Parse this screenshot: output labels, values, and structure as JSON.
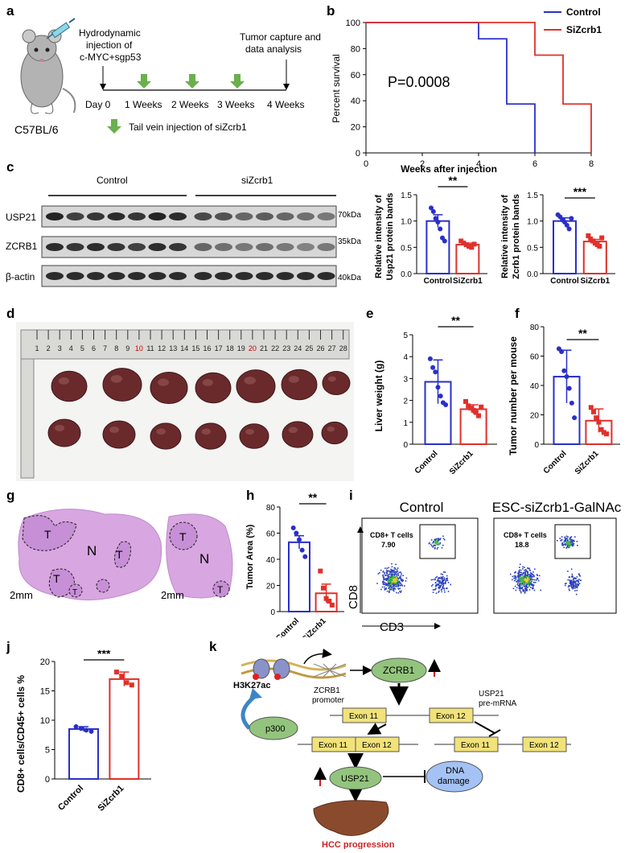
{
  "panel_labels": [
    "a",
    "b",
    "c",
    "d",
    "e",
    "f",
    "g",
    "h",
    "i",
    "j",
    "k"
  ],
  "colors": {
    "control": "#2a2fc9",
    "siZcrb1": "#e0302a",
    "arrow_green": "#6ab04c",
    "violet": "#d8a6e0"
  },
  "a": {
    "mouse_label": "C57BL/6",
    "injection_text": [
      "Hydrodynamic",
      "injection of",
      "c-MYC+sgp53"
    ],
    "capture_text": [
      "Tumor capture and",
      "data analysis"
    ],
    "timeline": [
      "Day 0",
      "1 Weeks",
      "2 Weeks",
      "3 Weeks",
      "4 Weeks"
    ],
    "legend": "Tail vein injection of  siZcrb1"
  },
  "b": {
    "chart_data": {
      "type": "line",
      "xlabel": "Weeks after injection",
      "ylabel": "Percent survival",
      "xlim": [
        0,
        8
      ],
      "ylim": [
        0,
        100
      ],
      "xticks": [
        "0",
        "2",
        "4",
        "6",
        "8"
      ],
      "yticks": [
        "0",
        "20",
        "40",
        "60",
        "80",
        "100"
      ],
      "annotation": "P=0.0008",
      "legend_position": "top-right",
      "series": [
        {
          "name": "Control",
          "steps": [
            [
              0,
              100
            ],
            [
              4,
              100
            ],
            [
              4,
              87.5
            ],
            [
              5,
              87.5
            ],
            [
              5,
              37.5
            ],
            [
              6,
              37.5
            ],
            [
              6,
              0
            ]
          ]
        },
        {
          "name": "SiZcrb1",
          "steps": [
            [
              0,
              100
            ],
            [
              6,
              100
            ],
            [
              6,
              75
            ],
            [
              7,
              75
            ],
            [
              7,
              37.5
            ],
            [
              8,
              37.5
            ],
            [
              8,
              0
            ]
          ]
        }
      ]
    }
  },
  "c": {
    "groups": [
      "Control",
      "siZcrb1"
    ],
    "rows": [
      "USP21",
      "ZCRB1",
      "β-actin"
    ],
    "kda": [
      "70kDa",
      "35kDa",
      "40kDa"
    ],
    "usp21_chart": {
      "chart_data": {
        "type": "bar",
        "ylabel": [
          "Relative  intensity of",
          "Usp21 protein bands"
        ],
        "categories": [
          "Control",
          "SiZcrb1"
        ],
        "values": [
          1.0,
          0.55
        ],
        "errors": [
          0.12,
          0.03
        ],
        "ylim": [
          0,
          1.5
        ],
        "yticks": [
          "0.0",
          "0.5",
          "1.0",
          "1.5"
        ],
        "significance": "**",
        "points": [
          [
            1.25,
            1.18,
            1.05,
            0.98,
            0.85,
            0.68,
            0.62
          ],
          [
            0.62,
            0.58,
            0.55,
            0.52,
            0.5,
            0.56
          ]
        ]
      }
    },
    "zcrb1_chart": {
      "chart_data": {
        "type": "bar",
        "ylabel": [
          "Relative intensity of",
          "Zcrb1 protein bands"
        ],
        "categories": [
          "Control",
          "SiZcrb1"
        ],
        "values": [
          1.0,
          0.61
        ],
        "errors": [
          0.06,
          0.04
        ],
        "ylim": [
          0,
          1.5
        ],
        "yticks": [
          "0.0",
          "0.5",
          "1.0",
          "1.5"
        ],
        "significance": "***",
        "points": [
          [
            1.12,
            1.08,
            1.02,
            0.98,
            0.92,
            0.85,
            1.05
          ],
          [
            0.72,
            0.66,
            0.62,
            0.58,
            0.55,
            0.52,
            0.68
          ]
        ]
      }
    }
  },
  "d": {
    "ruler_numbers": [
      "1",
      "2",
      "3",
      "4",
      "5",
      "6",
      "7",
      "8",
      "9",
      "10",
      "11",
      "12",
      "13",
      "14",
      "15",
      "16",
      "17",
      "18",
      "19",
      "20",
      "21",
      "22",
      "23",
      "24",
      "25",
      "26",
      "27",
      "28"
    ]
  },
  "e": {
    "chart_data": {
      "type": "bar",
      "ylabel": "Liver weight (g)",
      "categories": [
        "Control",
        "SiZcrb1"
      ],
      "values": [
        2.85,
        1.6
      ],
      "errors": [
        1.0,
        0.2
      ],
      "ylim": [
        0,
        5
      ],
      "yticks": [
        "0",
        "1",
        "2",
        "3",
        "4",
        "5"
      ],
      "significance": "**",
      "points": [
        [
          3.9,
          3.5,
          3.3,
          2.6,
          2.2,
          1.9,
          1.8
        ],
        [
          1.95,
          1.75,
          1.65,
          1.55,
          1.45,
          1.3,
          1.7
        ]
      ]
    }
  },
  "f": {
    "chart_data": {
      "type": "bar",
      "ylabel": "Tumor number per mouse",
      "categories": [
        "Control",
        "SiZcrb1"
      ],
      "values": [
        46,
        16
      ],
      "errors": [
        18,
        8
      ],
      "ylim": [
        0,
        80
      ],
      "yticks": [
        "0",
        "20",
        "40",
        "60",
        "80"
      ],
      "significance": "**",
      "points": [
        [
          65,
          63,
          50,
          46,
          38,
          28,
          18
        ],
        [
          25,
          22,
          18,
          15,
          10,
          8,
          7
        ]
      ]
    }
  },
  "g": {
    "region_labels": {
      "tumor": "T",
      "normal": "N"
    },
    "scale": [
      "2mm",
      "2mm"
    ]
  },
  "h": {
    "chart_data": {
      "type": "bar",
      "ylabel": "Tumor Area (%)",
      "categories": [
        "Control",
        "SiZcrb1"
      ],
      "values": [
        53,
        14
      ],
      "errors": [
        5,
        7
      ],
      "ylim": [
        0,
        80
      ],
      "yticks": [
        "0",
        "20",
        "40",
        "60",
        "80"
      ],
      "significance": "**",
      "points": [
        [
          64,
          60,
          55,
          47,
          42
        ],
        [
          31,
          18,
          10,
          8,
          5
        ]
      ]
    }
  },
  "i": {
    "titles": [
      "Control",
      "ESC-siZcrb1-GalNAc"
    ],
    "gate_label": "CD8+ T cells",
    "gate_values": [
      "7.90",
      "18.8"
    ],
    "xlabel": "CD3",
    "ylabel": "CD8"
  },
  "j": {
    "chart_data": {
      "type": "bar",
      "ylabel": "CD8+ cells/CD45+ cells %",
      "categories": [
        "Control",
        "SiZcrb1"
      ],
      "values": [
        8.5,
        17
      ],
      "errors": [
        0.4,
        1.2
      ],
      "ylim": [
        0,
        20
      ],
      "yticks": [
        "0",
        "5",
        "10",
        "15",
        "20"
      ],
      "significance": "***",
      "points": [
        [
          8.9,
          8.6,
          8.3,
          8.1
        ],
        [
          18.2,
          17.5,
          16.4,
          16.0
        ]
      ]
    }
  },
  "k": {
    "h3k27ac": "H3K27ac",
    "p300": "p300",
    "promoter": [
      "ZCRB1",
      "promoter"
    ],
    "zcrb1": "ZCRB1",
    "pre_mrna": [
      "USP21",
      "pre-mRNA"
    ],
    "exon11": "Exon 11",
    "exon12": "Exon 12",
    "usp21": "USP21",
    "dna_damage": [
      "DNA",
      "damage"
    ],
    "hcc": "HCC progression"
  }
}
